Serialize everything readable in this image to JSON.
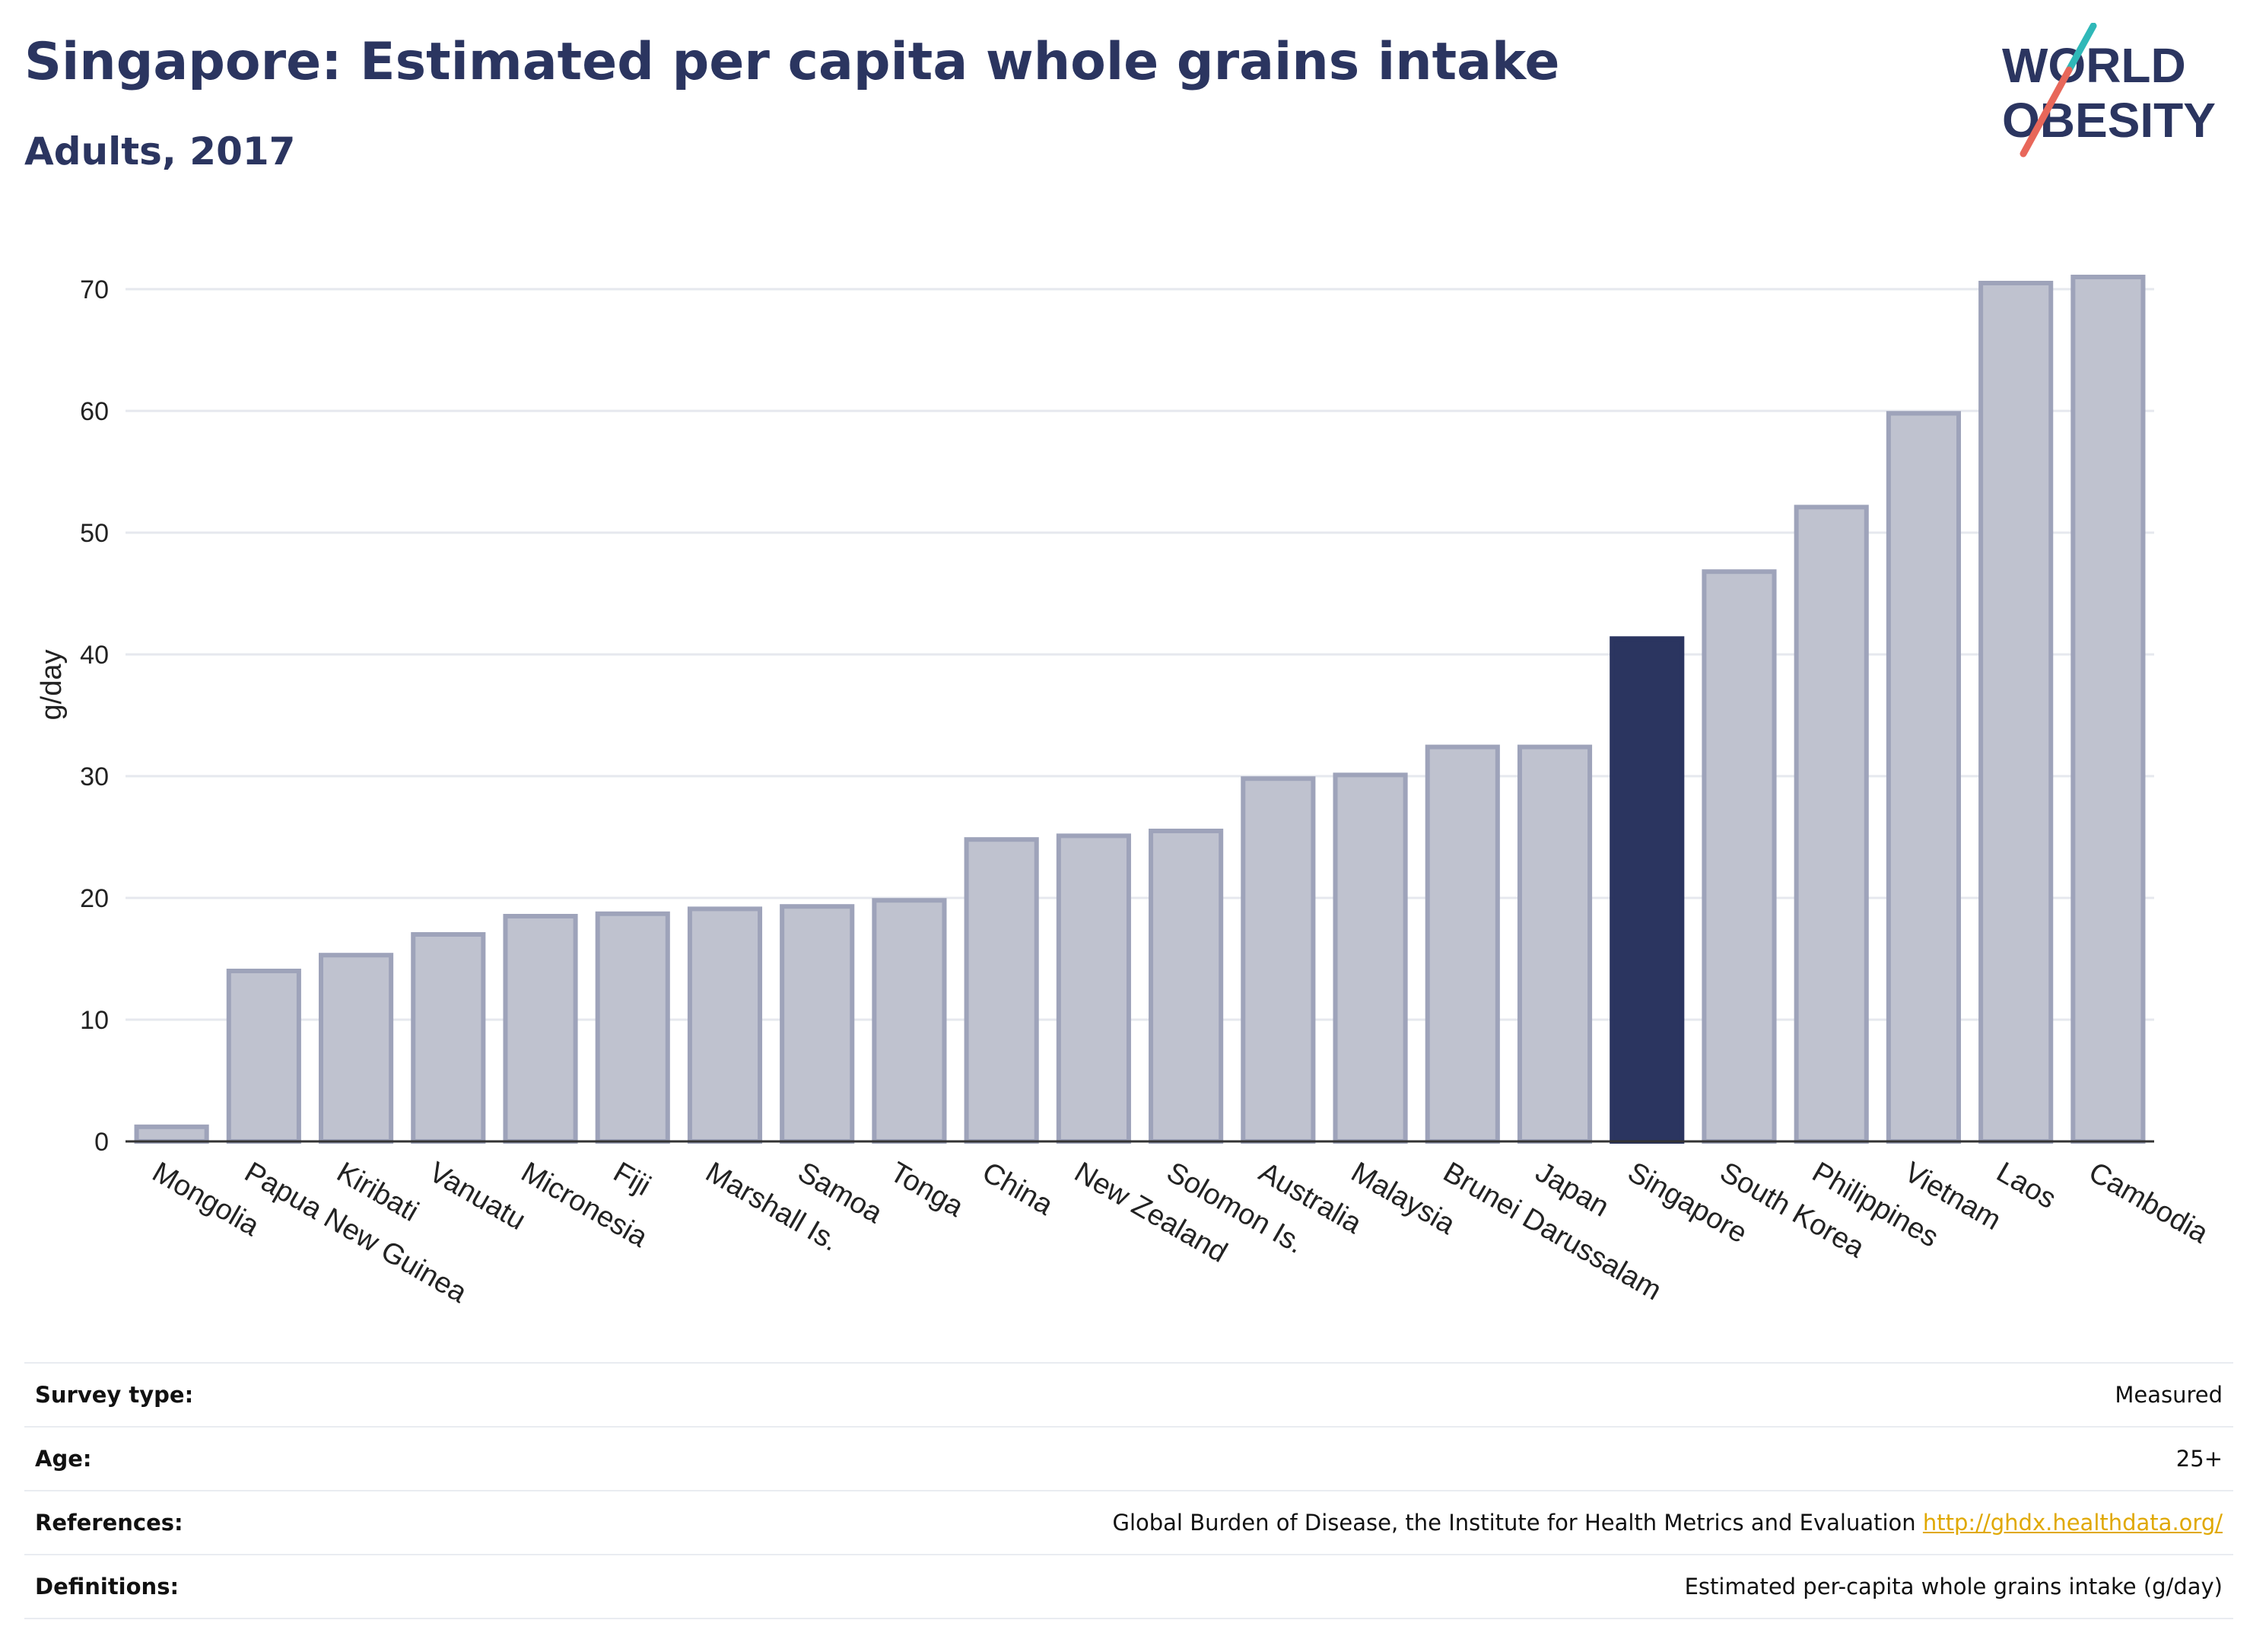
{
  "header": {
    "title": "Singapore: Estimated per capita whole grains intake",
    "subtitle": "Adults, 2017"
  },
  "logo": {
    "line1": "WORLD",
    "line2": "OBESITY",
    "accent_teal": "#2fb8b8",
    "accent_red": "#e8675a"
  },
  "chart_data": {
    "type": "bar",
    "title": "Singapore: Estimated per capita whole grains intake",
    "subtitle": "Adults, 2017",
    "xlabel": "",
    "ylabel": "g/day",
    "ylim": [
      0,
      75
    ],
    "yticks": [
      0,
      10,
      20,
      30,
      40,
      50,
      60,
      70
    ],
    "grid": true,
    "highlight": "Singapore",
    "colors": {
      "bar_fill": "#bfc2cf",
      "bar_stroke": "#9ea3ba",
      "highlight": "#2b3560",
      "grid": "#e6e8ee",
      "axis": "#333333"
    },
    "categories": [
      "Mongolia",
      "Papua New Guinea",
      "Kiribati",
      "Vanuatu",
      "Micronesia",
      "Fiji",
      "Marshall Is.",
      "Samoa",
      "Tonga",
      "China",
      "New Zealand",
      "Solomon Is.",
      "Australia",
      "Malaysia",
      "Brunei Darussalam",
      "Japan",
      "Singapore",
      "South Korea",
      "Philippines",
      "Vietnam",
      "Laos",
      "Cambodia"
    ],
    "values": [
      1.2,
      14.0,
      15.3,
      17.0,
      18.5,
      18.7,
      19.1,
      19.3,
      19.8,
      24.8,
      25.1,
      25.5,
      29.8,
      30.1,
      32.4,
      32.4,
      41.3,
      46.8,
      52.1,
      59.8,
      70.5,
      71.0
    ]
  },
  "info": {
    "survey_type_label": "Survey type:",
    "survey_type_value": "Measured",
    "age_label": "Age:",
    "age_value": "25+",
    "references_label": "References:",
    "references_value": "Global Burden of Disease, the Institute for Health Metrics and Evaluation",
    "references_link": "http://ghdx.healthdata.org/",
    "definitions_label": "Definitions:",
    "definitions_value": "Estimated per-capita whole grains intake (g/day)"
  }
}
